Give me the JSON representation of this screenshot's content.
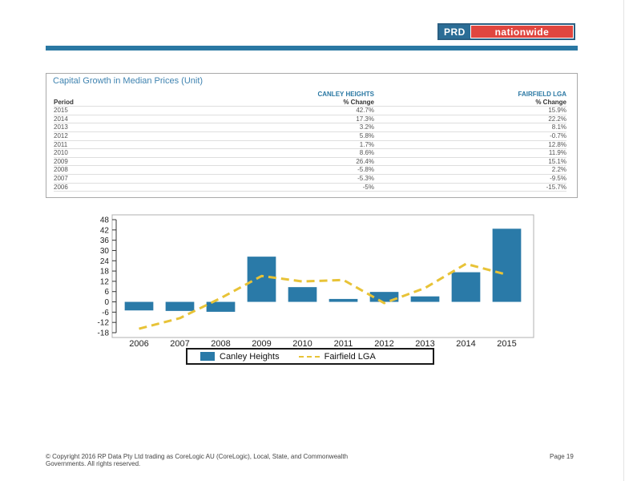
{
  "header": {
    "logo_left": "PRD",
    "logo_right": "nationwide"
  },
  "table": {
    "title": "Capital Growth in Median Prices (Unit)",
    "group_headers": [
      "CANLEY HEIGHTS",
      "FAIRFIELD LGA"
    ],
    "columns": [
      "Period",
      "% Change",
      "% Change"
    ],
    "rows": [
      [
        "2015",
        "42.7%",
        "15.9%"
      ],
      [
        "2014",
        "17.3%",
        "22.2%"
      ],
      [
        "2013",
        "3.2%",
        "8.1%"
      ],
      [
        "2012",
        "5.8%",
        "-0.7%"
      ],
      [
        "2011",
        "1.7%",
        "12.8%"
      ],
      [
        "2010",
        "8.6%",
        "11.9%"
      ],
      [
        "2009",
        "26.4%",
        "15.1%"
      ],
      [
        "2008",
        "-5.8%",
        "2.2%"
      ],
      [
        "2007",
        "-5.3%",
        "-9.5%"
      ],
      [
        "2006",
        "-5%",
        "-15.7%"
      ]
    ]
  },
  "chart_data": {
    "type": "bar",
    "categories": [
      "2006",
      "2007",
      "2008",
      "2009",
      "2010",
      "2011",
      "2012",
      "2013",
      "2014",
      "2015"
    ],
    "series": [
      {
        "name": "Canley Heights",
        "kind": "bar",
        "color": "#2a7aa8",
        "values": [
          -5,
          -5.3,
          -5.8,
          26.4,
          8.6,
          1.7,
          5.8,
          3.2,
          17.3,
          42.7
        ]
      },
      {
        "name": "Fairfield LGA",
        "kind": "line",
        "color": "#e8c337",
        "values": [
          -15.7,
          -9.5,
          2.2,
          15.1,
          11.9,
          12.8,
          -0.7,
          8.1,
          22.2,
          15.9
        ]
      }
    ],
    "ylim": [
      -18,
      48
    ],
    "yticks": [
      "48",
      "42",
      "36",
      "30",
      "24",
      "18",
      "12",
      "6",
      "0",
      "-6",
      "-12",
      "-18"
    ],
    "ytick_values": [
      48,
      42,
      36,
      30,
      24,
      18,
      12,
      6,
      0,
      -6,
      -12,
      -18
    ],
    "title": "",
    "xlabel": "",
    "ylabel": "",
    "legend": [
      "Canley Heights",
      "Fairfield LGA"
    ]
  },
  "footer": {
    "copyright_lines": [
      "© Copyright 2016 RP Data Pty Ltd trading as CoreLogic AU (CoreLogic), Local, State, and Commonwealth",
      "Governments.  All rights reserved."
    ],
    "page": "Page 19"
  }
}
